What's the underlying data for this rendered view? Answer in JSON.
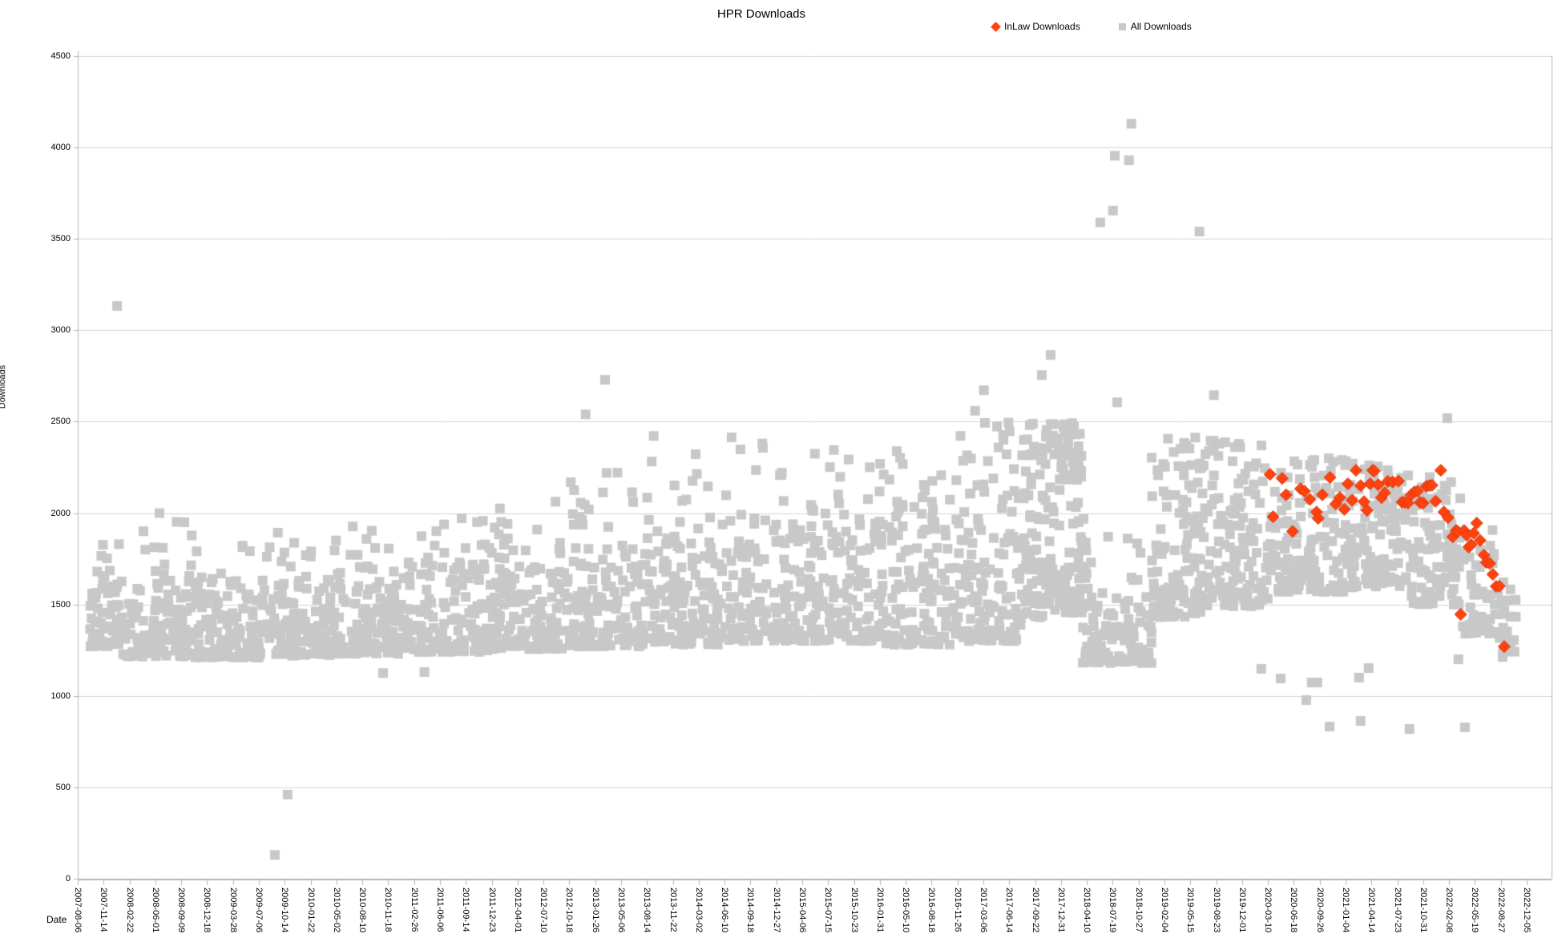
{
  "title": "HPR Downloads",
  "legend": [
    {
      "label": "InLaw Downloads",
      "marker": "diamond",
      "color": "#ff420e"
    },
    {
      "label": "All Downloads",
      "marker": "square",
      "color": "#c8c8c8"
    }
  ],
  "y_axis": {
    "title": "Downloads",
    "min": 0,
    "max": 4500,
    "step": 500,
    "tick_labels": [
      "0",
      "500",
      "1000",
      "1500",
      "2000",
      "2500",
      "3000",
      "3500",
      "4000",
      "4500"
    ]
  },
  "x_axis": {
    "title": "Date",
    "tick_step_days": 100,
    "tick_labels": [
      "2007-08-06",
      "2007-11-14",
      "2008-02-22",
      "2008-06-01",
      "2008-09-09",
      "2008-12-18",
      "2009-03-28",
      "2009-07-06",
      "2009-10-14",
      "2010-01-22",
      "2010-05-02",
      "2010-08-10",
      "2010-11-18",
      "2011-02-26",
      "2011-06-06",
      "2011-09-14",
      "2011-12-23",
      "2012-04-01",
      "2012-07-10",
      "2012-10-18",
      "2013-01-26",
      "2013-05-06",
      "2013-08-14",
      "2013-11-22",
      "2014-03-02",
      "2014-06-10",
      "2014-09-18",
      "2014-12-27",
      "2015-04-06",
      "2015-07-15",
      "2015-10-23",
      "2016-01-31",
      "2016-05-10",
      "2016-08-18",
      "2016-11-26",
      "2017-03-06",
      "2017-06-14",
      "2017-09-22",
      "2017-12-31",
      "2018-04-10",
      "2018-07-19",
      "2018-10-27",
      "2019-02-04",
      "2019-05-15",
      "2019-08-23",
      "2019-12-01",
      "2020-03-10",
      "2020-06-18",
      "2020-09-26",
      "2021-01-04",
      "2021-04-14",
      "2021-07-23",
      "2021-10-31",
      "2022-02-08",
      "2022-05-19",
      "2022-08-27",
      "2022-12-05"
    ]
  },
  "colors": {
    "grid": "#d5d5d5",
    "axis": "#b4b4b4",
    "inlaw": "#ff420e",
    "inlaw_border": "#d63a10",
    "all": "#c8c8c8",
    "text": "#000000"
  },
  "chart_data": {
    "type": "scatter",
    "x_unit": "days since 2007-08-06",
    "x_range_days": [
      0,
      5600
    ],
    "ylim": [
      0,
      4500
    ],
    "grid": "horizontal",
    "legend_position": "top-right",
    "series": [
      {
        "name": "All Downloads",
        "marker": "square",
        "color": "#c8c8c8",
        "note": "dense daily scatter 2007-2022; envelope encoded as cloud_segments [startDay,endDay,count,low,high,topFraction,topHigh]",
        "cloud_segments": [
          [
            46,
            170,
            60,
            1270,
            1680,
            0.1,
            1830
          ],
          [
            170,
            420,
            110,
            1215,
            1620,
            0.09,
            1960
          ],
          [
            420,
            700,
            120,
            1210,
            1640,
            0.08,
            1900
          ],
          [
            700,
            1000,
            130,
            1220,
            1680,
            0.09,
            1900
          ],
          [
            1000,
            1300,
            130,
            1230,
            1700,
            0.1,
            1950
          ],
          [
            1300,
            1600,
            130,
            1240,
            1740,
            0.1,
            2000
          ],
          [
            1600,
            1900,
            130,
            1255,
            1780,
            0.12,
            2100
          ],
          [
            1900,
            2200,
            130,
            1270,
            1820,
            0.13,
            2250
          ],
          [
            2200,
            2500,
            130,
            1280,
            1860,
            0.13,
            2350
          ],
          [
            2500,
            2800,
            130,
            1300,
            1900,
            0.14,
            2400
          ],
          [
            2800,
            3100,
            130,
            1300,
            1950,
            0.14,
            2380
          ],
          [
            3100,
            3400,
            130,
            1280,
            2000,
            0.16,
            2480
          ],
          [
            3400,
            3650,
            120,
            1300,
            2100,
            0.18,
            2520
          ],
          [
            3650,
            3800,
            90,
            1430,
            2300,
            0.3,
            2500
          ],
          [
            3800,
            3880,
            45,
            2180,
            2500,
            0,
            0
          ],
          [
            3790,
            3905,
            55,
            1450,
            2060,
            0,
            0
          ],
          [
            3880,
            4150,
            95,
            1180,
            1570,
            0.08,
            1900
          ],
          [
            4150,
            4350,
            110,
            1430,
            2250,
            0.14,
            2430
          ],
          [
            4350,
            4600,
            120,
            1490,
            2300,
            0.1,
            2430
          ],
          [
            4600,
            4900,
            140,
            1570,
            2245,
            0.07,
            2330
          ],
          [
            4900,
            5150,
            130,
            1590,
            2200,
            0.06,
            2300
          ],
          [
            5150,
            5350,
            90,
            1500,
            2110,
            0.05,
            2200
          ],
          [
            5350,
            5480,
            48,
            1340,
            1910,
            0,
            0
          ],
          [
            5480,
            5560,
            22,
            1235,
            1640,
            0,
            0
          ]
        ],
        "outlier_points": [
          [
            152,
            3133
          ],
          [
            316,
            2000
          ],
          [
            412,
            1950
          ],
          [
            762,
            130
          ],
          [
            811,
            460
          ],
          [
            1180,
            1125
          ],
          [
            1340,
            1130
          ],
          [
            1963,
            2540
          ],
          [
            2038,
            2729
          ],
          [
            2226,
            2422
          ],
          [
            2388,
            2322
          ],
          [
            2527,
            2414
          ],
          [
            3468,
            2560
          ],
          [
            3502,
            2672
          ],
          [
            3726,
            2755
          ],
          [
            3760,
            2865
          ],
          [
            3952,
            3590
          ],
          [
            4001,
            3655
          ],
          [
            4008,
            3955
          ],
          [
            4017,
            2606
          ],
          [
            4063,
            3930
          ],
          [
            4072,
            4130
          ],
          [
            4335,
            3540
          ],
          [
            4391,
            2645
          ],
          [
            4574,
            1148
          ],
          [
            4649,
            1095
          ],
          [
            4748,
            977
          ],
          [
            4769,
            1073
          ],
          [
            4791,
            1073
          ],
          [
            4838,
            832
          ],
          [
            4952,
            1100
          ],
          [
            4958,
            863
          ],
          [
            4989,
            1152
          ],
          [
            5147,
            819
          ],
          [
            5293,
            2519
          ],
          [
            5336,
            1200
          ],
          [
            5361,
            828
          ],
          [
            5507,
            1213
          ],
          [
            5520,
            1310
          ],
          [
            5538,
            1258
          ],
          [
            5553,
            1242
          ]
        ]
      },
      {
        "name": "InLaw Downloads",
        "marker": "diamond",
        "color": "#ff420e",
        "points": [
          [
            4608,
            2212
          ],
          [
            4620,
            1980
          ],
          [
            4655,
            2190
          ],
          [
            4670,
            2100
          ],
          [
            4695,
            1900
          ],
          [
            4726,
            2133
          ],
          [
            4741,
            2120
          ],
          [
            4762,
            2075
          ],
          [
            4788,
            2006
          ],
          [
            4794,
            1971
          ],
          [
            4810,
            2100
          ],
          [
            4840,
            2195
          ],
          [
            4862,
            2050
          ],
          [
            4878,
            2085
          ],
          [
            4895,
            2020
          ],
          [
            4909,
            2160
          ],
          [
            4925,
            2070
          ],
          [
            4940,
            2234
          ],
          [
            4958,
            2150
          ],
          [
            4971,
            2063
          ],
          [
            4983,
            2015
          ],
          [
            4995,
            2160
          ],
          [
            5005,
            2234
          ],
          [
            5011,
            2230
          ],
          [
            5026,
            2155
          ],
          [
            5039,
            2085
          ],
          [
            5051,
            2111
          ],
          [
            5063,
            2173
          ],
          [
            5082,
            2170
          ],
          [
            5104,
            2175
          ],
          [
            5118,
            2060
          ],
          [
            5129,
            2059
          ],
          [
            5141,
            2055
          ],
          [
            5153,
            2100
          ],
          [
            5166,
            2116
          ],
          [
            5178,
            2120
          ],
          [
            5188,
            2058
          ],
          [
            5200,
            2055
          ],
          [
            5212,
            2146
          ],
          [
            5224,
            2150
          ],
          [
            5234,
            2152
          ],
          [
            5248,
            2065
          ],
          [
            5268,
            2234
          ],
          [
            5280,
            2006
          ],
          [
            5296,
            1975
          ],
          [
            5314,
            1870
          ],
          [
            5327,
            1905
          ],
          [
            5333,
            1900
          ],
          [
            5345,
            1446
          ],
          [
            5358,
            1905
          ],
          [
            5368,
            1880
          ],
          [
            5376,
            1814
          ],
          [
            5385,
            1827
          ],
          [
            5395,
            1890
          ],
          [
            5407,
            1945
          ],
          [
            5420,
            1850
          ],
          [
            5435,
            1770
          ],
          [
            5444,
            1730
          ],
          [
            5457,
            1725
          ],
          [
            5469,
            1665
          ],
          [
            5482,
            1599
          ],
          [
            5494,
            1600
          ],
          [
            5513,
            1270
          ]
        ]
      }
    ]
  }
}
